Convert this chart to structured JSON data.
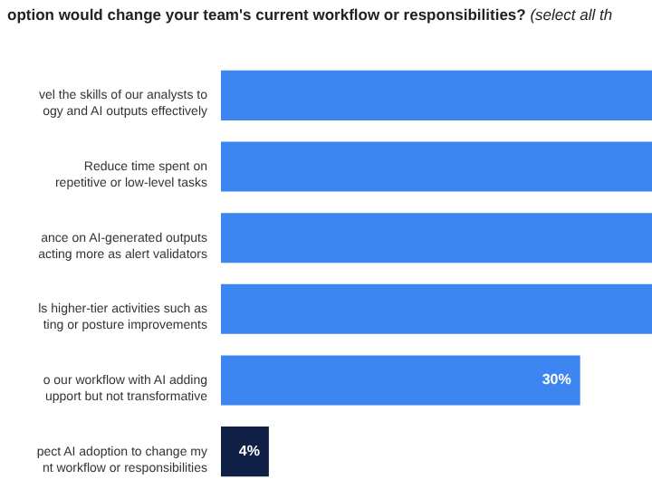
{
  "chart_data": {
    "type": "bar",
    "orientation": "horizontal",
    "title": "option would change your team's current workflow or responsibilities?",
    "subtitle": "(select all th",
    "categories": [
      "vel the skills of our analysts to\nogy and AI outputs effectively",
      "Reduce time spent on\nrepetitive or low-level tasks",
      "ance on AI-generated outputs\nacting more as alert validators",
      "ls higher-tier activities such as\nting or posture improvements",
      "o our workflow with AI adding\nupport but not transformative",
      "pect AI adoption to change my\nnt workflow or responsibilities"
    ],
    "values": [
      36,
      36,
      36,
      36,
      30,
      4
    ],
    "colors": [
      "#3d86f2",
      "#3d86f2",
      "#3d86f2",
      "#3d86f2",
      "#3d86f2",
      "#0f1f45"
    ],
    "value_labels": [
      null,
      null,
      null,
      null,
      "30%",
      "4%"
    ],
    "xlim": [
      0,
      36
    ],
    "tick_labels": "y"
  }
}
